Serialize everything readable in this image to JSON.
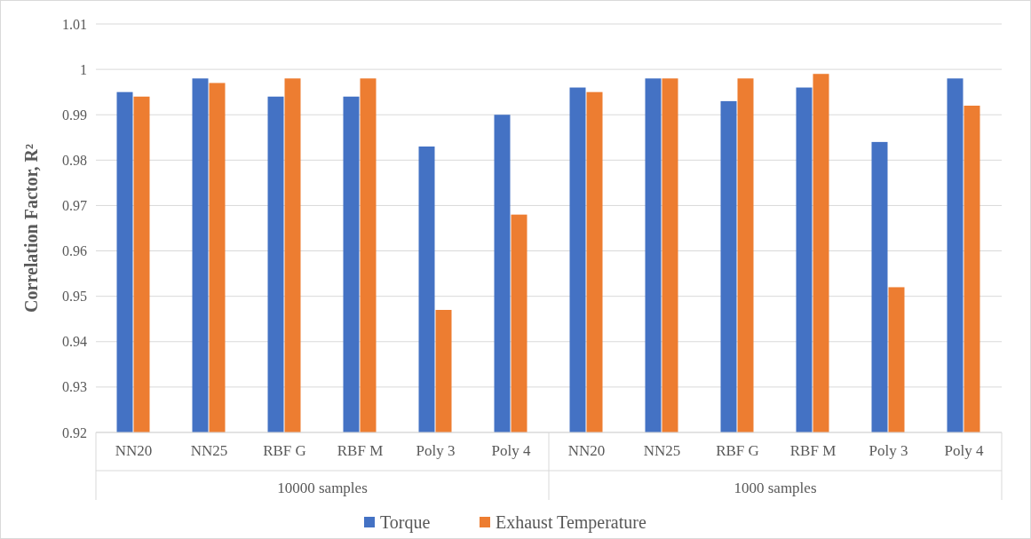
{
  "chart_data": {
    "type": "bar",
    "ylabel": "Correlation Factor, R²",
    "categories": [
      "NN20",
      "NN25",
      "RBF G",
      "RBF M",
      "Poly 3",
      "Poly 4",
      "NN20",
      "NN25",
      "RBF G",
      "RBF M",
      "Poly 3",
      "Poly 4"
    ],
    "series": [
      {
        "name": "Torque",
        "color": "#4472c4",
        "values": [
          0.995,
          0.998,
          0.994,
          0.994,
          0.983,
          0.99,
          0.996,
          0.998,
          0.993,
          0.996,
          0.984,
          0.998
        ]
      },
      {
        "name": "Exhaust Temperature",
        "color": "#ed7d31",
        "values": [
          0.994,
          0.997,
          0.998,
          0.998,
          0.947,
          0.968,
          0.995,
          0.998,
          0.998,
          0.999,
          0.952,
          0.992
        ]
      }
    ],
    "ylim": [
      0.92,
      1.01
    ],
    "yticks": [
      0.92,
      0.93,
      0.94,
      0.95,
      0.96,
      0.97,
      0.98,
      0.99,
      1,
      1.01
    ],
    "grid": "y",
    "legend": "bottom",
    "annotations": [
      "10000 samples",
      "1000 samples"
    ]
  }
}
